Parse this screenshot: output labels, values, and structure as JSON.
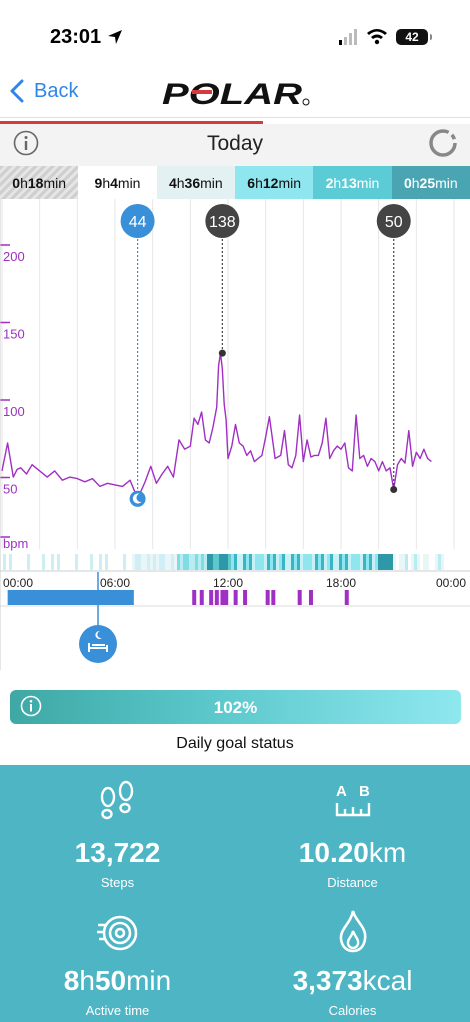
{
  "status_bar": {
    "time": "23:01",
    "battery": "42"
  },
  "nav": {
    "back_label": "Back",
    "brand": "POLAR"
  },
  "header": {
    "title": "Today"
  },
  "zones": [
    {
      "h": "0",
      "m": "18",
      "bg": "#d9d9d9",
      "color": "#111"
    },
    {
      "h": "9",
      "m": "4",
      "bg": "#ffffff",
      "color": "#111"
    },
    {
      "h": "4",
      "m": "36",
      "bg": "#e3f1f3",
      "color": "#111"
    },
    {
      "h": "6",
      "m": "12",
      "bg": "#8fe6ee",
      "color": "#111"
    },
    {
      "h": "2",
      "m": "13",
      "bg": "#5bcbd6",
      "color": "#ffffff"
    },
    {
      "h": "0",
      "m": "25",
      "bg": "#4aa5b2",
      "color": "#ffffff"
    }
  ],
  "units": {
    "h": "h",
    "min": "min"
  },
  "chart_data": {
    "type": "line",
    "ylabel": "bpm",
    "ylim": [
      30,
      220
    ],
    "xlim": [
      0,
      24
    ],
    "y_ticks": [
      50,
      100,
      150,
      200
    ],
    "x_ticks": [
      "00:00",
      "06:00",
      "12:00",
      "18:00",
      "00:00"
    ],
    "markers": [
      {
        "label": "44",
        "x": 7.2,
        "y": 44,
        "kind": "sleep",
        "color": "#3a8fd9"
      },
      {
        "label": "138",
        "x": 11.7,
        "y": 138,
        "kind": "max",
        "color": "#444444"
      },
      {
        "label": "50",
        "x": 20.8,
        "y": 50,
        "kind": "min",
        "color": "#444444"
      }
    ],
    "series": [
      {
        "x": [
          0.0,
          0.3,
          0.6,
          0.8,
          1.0,
          1.3,
          1.6,
          2.0,
          2.4,
          2.8,
          3.2,
          3.6,
          4.0,
          4.4,
          4.8,
          5.2,
          5.6,
          6.0,
          6.4,
          6.8,
          7.2,
          7.6,
          7.9,
          8.2,
          8.5,
          8.8,
          9.1,
          9.4,
          9.7,
          10.0,
          10.2,
          10.4,
          10.6,
          10.8,
          11.0,
          11.2,
          11.4,
          11.5,
          11.6,
          11.7,
          11.8,
          11.9,
          12.0,
          12.2,
          12.4,
          12.6,
          12.8,
          13.0,
          13.2,
          13.4,
          13.6,
          13.8,
          14.0,
          14.2,
          14.5,
          14.8,
          15.0,
          15.2,
          15.4,
          15.6,
          15.8,
          16.0,
          16.2,
          16.4,
          16.6,
          16.8,
          17.0,
          17.2,
          17.4,
          17.6,
          17.8,
          18.0,
          18.2,
          18.4,
          18.6,
          18.8,
          19.0,
          19.2,
          19.4,
          19.6,
          19.8,
          20.0,
          20.2,
          20.4,
          20.6,
          20.8,
          21.0,
          21.2,
          21.4,
          21.6,
          21.8,
          22.0,
          22.2,
          22.4,
          22.6,
          22.8
        ],
        "y": [
          62,
          80,
          58,
          63,
          64,
          60,
          66,
          62,
          58,
          62,
          56,
          58,
          57,
          55,
          57,
          52,
          54,
          53,
          52,
          56,
          44,
          55,
          65,
          54,
          60,
          65,
          58,
          82,
          76,
          78,
          96,
          92,
          100,
          82,
          80,
          90,
          103,
          130,
          138,
          128,
          105,
          95,
          70,
          78,
          92,
          80,
          78,
          72,
          75,
          68,
          70,
          72,
          84,
          97,
          70,
          72,
          88,
          66,
          64,
          72,
          98,
          68,
          82,
          71,
          72,
          72,
          80,
          96,
          70,
          75,
          78,
          76,
          80,
          64,
          62,
          98,
          70,
          72,
          65,
          70,
          68,
          62,
          68,
          62,
          64,
          50,
          66,
          70,
          67,
          88,
          65,
          74,
          70,
          76,
          70,
          68
        ]
      }
    ],
    "activity_bar": {
      "sleep_start": 0.3,
      "sleep_end": 7.0
    }
  },
  "goal": {
    "percent": "102%",
    "label": "Daily goal status"
  },
  "stats": {
    "steps": {
      "value": "13,722",
      "unit": "",
      "label": "Steps"
    },
    "distance": {
      "value": "10.20",
      "unit": "km",
      "label": "Distance"
    },
    "active": {
      "h": "8",
      "m": "50",
      "label": "Active time"
    },
    "calories": {
      "value": "3,373",
      "unit": "kcal",
      "label": "Calories"
    }
  },
  "colors": {
    "hr_line": "#a02fc4",
    "sleep_blue": "#3a8fd9",
    "accent_teal": "#4db5c4",
    "brand_red": "#d63a3a"
  }
}
